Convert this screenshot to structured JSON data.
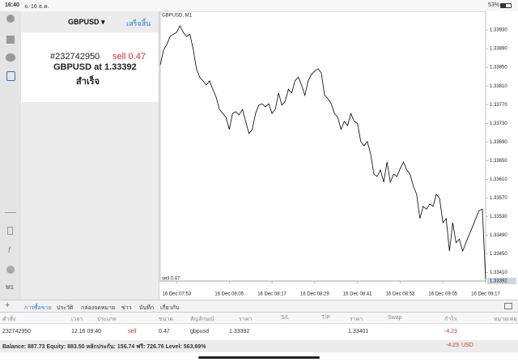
{
  "status": {
    "time": "16:40",
    "date": "จ. 16 ธ.ค.",
    "battery": "53%"
  },
  "panel": {
    "symbol": "GBPUSD ▾",
    "done": "เสร็จสิ้น",
    "order": "#232742950",
    "action": "sell 0.47",
    "price_line": "GBPUSD at 1.33392",
    "result": "สำเร็จ",
    "timeframe": "M1"
  },
  "chart_data": {
    "type": "line",
    "title": "GBPUSD, M1",
    "color": "#000000",
    "annotation": "sell 0.47",
    "current_price": {
      "value": 1.33392,
      "label": "1.33392"
    },
    "ylim": [
      1.33392,
      1.3397
    ],
    "yticks": [
      {
        "value": 1.3393,
        "label": "1.33930"
      },
      {
        "value": 1.3389,
        "label": "1.33890"
      },
      {
        "value": 1.3385,
        "label": "1.33850"
      },
      {
        "value": 1.3381,
        "label": "1.33810"
      },
      {
        "value": 1.3377,
        "label": "1.33770"
      },
      {
        "value": 1.3373,
        "label": "1.33730"
      },
      {
        "value": 1.3369,
        "label": "1.33690"
      },
      {
        "value": 1.3365,
        "label": "1.33650"
      },
      {
        "value": 1.3361,
        "label": "1.33610"
      },
      {
        "value": 1.3357,
        "label": "1.33570"
      },
      {
        "value": 1.3353,
        "label": "1.33530"
      },
      {
        "value": 1.3349,
        "label": "1.33490"
      },
      {
        "value": 1.3345,
        "label": "1.33450"
      },
      {
        "value": 1.3341,
        "label": "1.33410"
      }
    ],
    "categories": [
      null,
      null,
      null,
      null,
      null,
      "16 Dec 07:53",
      null,
      null,
      null,
      null,
      null,
      null,
      null,
      null,
      null,
      null,
      null,
      null,
      null,
      null,
      null,
      "16 Dec 08:05",
      null,
      null,
      null,
      null,
      null,
      null,
      null,
      null,
      null,
      null,
      null,
      null,
      "16 Dec 08:17",
      null,
      null,
      null,
      null,
      null,
      null,
      null,
      null,
      null,
      null,
      null,
      null,
      "16 Dec 08:29",
      null,
      null,
      null,
      null,
      null,
      null,
      null,
      null,
      null,
      null,
      null,
      null,
      "16 Dec 08:41",
      null,
      null,
      null,
      null,
      null,
      null,
      null,
      null,
      null,
      null,
      null,
      null,
      "16 Dec 08:53",
      null,
      null,
      null,
      null,
      null,
      null,
      null,
      null,
      null,
      null,
      null,
      null,
      "16 Dec 09:05",
      null,
      null,
      null,
      null,
      null,
      null,
      null,
      null,
      null,
      null,
      null,
      null,
      "16 Dec 09:17"
    ],
    "values": [
      1.33855,
      1.33887,
      1.33899,
      1.33916,
      1.33921,
      1.33925,
      1.33939,
      1.33925,
      1.33916,
      1.33921,
      1.3389,
      1.33847,
      1.33829,
      1.33821,
      1.33812,
      1.33821,
      1.33803,
      1.33786,
      1.3376,
      1.33751,
      1.33743,
      1.33717,
      1.33751,
      1.33755,
      1.33748,
      1.3376,
      1.33734,
      1.33708,
      1.33717,
      1.33751,
      1.33769,
      1.33772,
      1.33765,
      1.33772,
      1.33751,
      1.3376,
      1.33795,
      1.33769,
      1.33777,
      1.33803,
      1.33795,
      1.33821,
      1.33829,
      1.33812,
      1.3379,
      1.33821,
      1.33835,
      1.33842,
      1.33847,
      1.33838,
      1.3379,
      1.33783,
      1.33772,
      1.33751,
      1.33743,
      1.33717,
      1.33734,
      1.33725,
      1.33751,
      1.33734,
      1.3373,
      1.33691,
      1.33682,
      1.33691,
      1.33665,
      1.33621,
      1.33616,
      1.3363,
      1.33604,
      1.33647,
      1.33604,
      1.33621,
      1.33616,
      1.33633,
      1.33647,
      1.3363,
      1.33621,
      1.33595,
      1.33578,
      1.33526,
      1.33552,
      1.33546,
      1.33557,
      1.33552,
      1.33578,
      1.33569,
      1.33517,
      1.33526,
      1.33456,
      1.33517,
      1.33474,
      1.33482,
      1.33456,
      1.33474,
      1.33491,
      1.33508,
      1.33526,
      1.33543,
      1.33546,
      1.33395
    ]
  },
  "tabs": [
    "การซื้อขาย",
    "ประวัติ",
    "กล่องจดหมาย",
    "ข่าว",
    "บันทึก",
    "เกี่ยวกับ"
  ],
  "table": {
    "header": [
      "คำสั่ง",
      "เวลา",
      "ประเภท",
      "ขนาด",
      "สัญลักษณ์",
      "ราคา",
      "S/L",
      "T/P",
      "ราคา",
      "Swap",
      "กำไร",
      "หมายเหตุ"
    ],
    "rows": [
      [
        "232742950",
        "12.16 09:40",
        "sell",
        "0.47",
        "gbpusd",
        "1.33392",
        "",
        "",
        "1.33401",
        "",
        "-4.23",
        ""
      ]
    ]
  },
  "footer": {
    "summary": "Balance: 887.73 Equity: 883.50 หลักประกัน: 156.74 ฟรี: 726.76 Level: 563.69%",
    "profit": "-4.23",
    "currency": "USD"
  }
}
